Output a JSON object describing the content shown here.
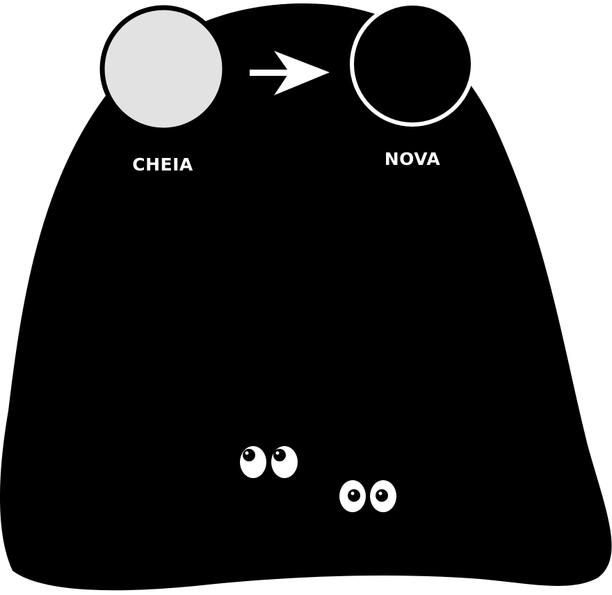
{
  "colors": {
    "background": "#ffffff",
    "blob": "#000000",
    "full_moon_fill": "#e2e2e2",
    "new_moon_fill": "#000000",
    "outline": "#ffffff",
    "label": "#ffffff"
  },
  "phases": {
    "from": {
      "label": "CHEIA",
      "icon": "full-moon-icon"
    },
    "to": {
      "label": "NOVA",
      "icon": "new-moon-icon"
    },
    "transition_icon": "arrow-right-icon"
  },
  "decorations": {
    "eyes_icon": "peeking-eyes-icon",
    "pairs": 2
  }
}
